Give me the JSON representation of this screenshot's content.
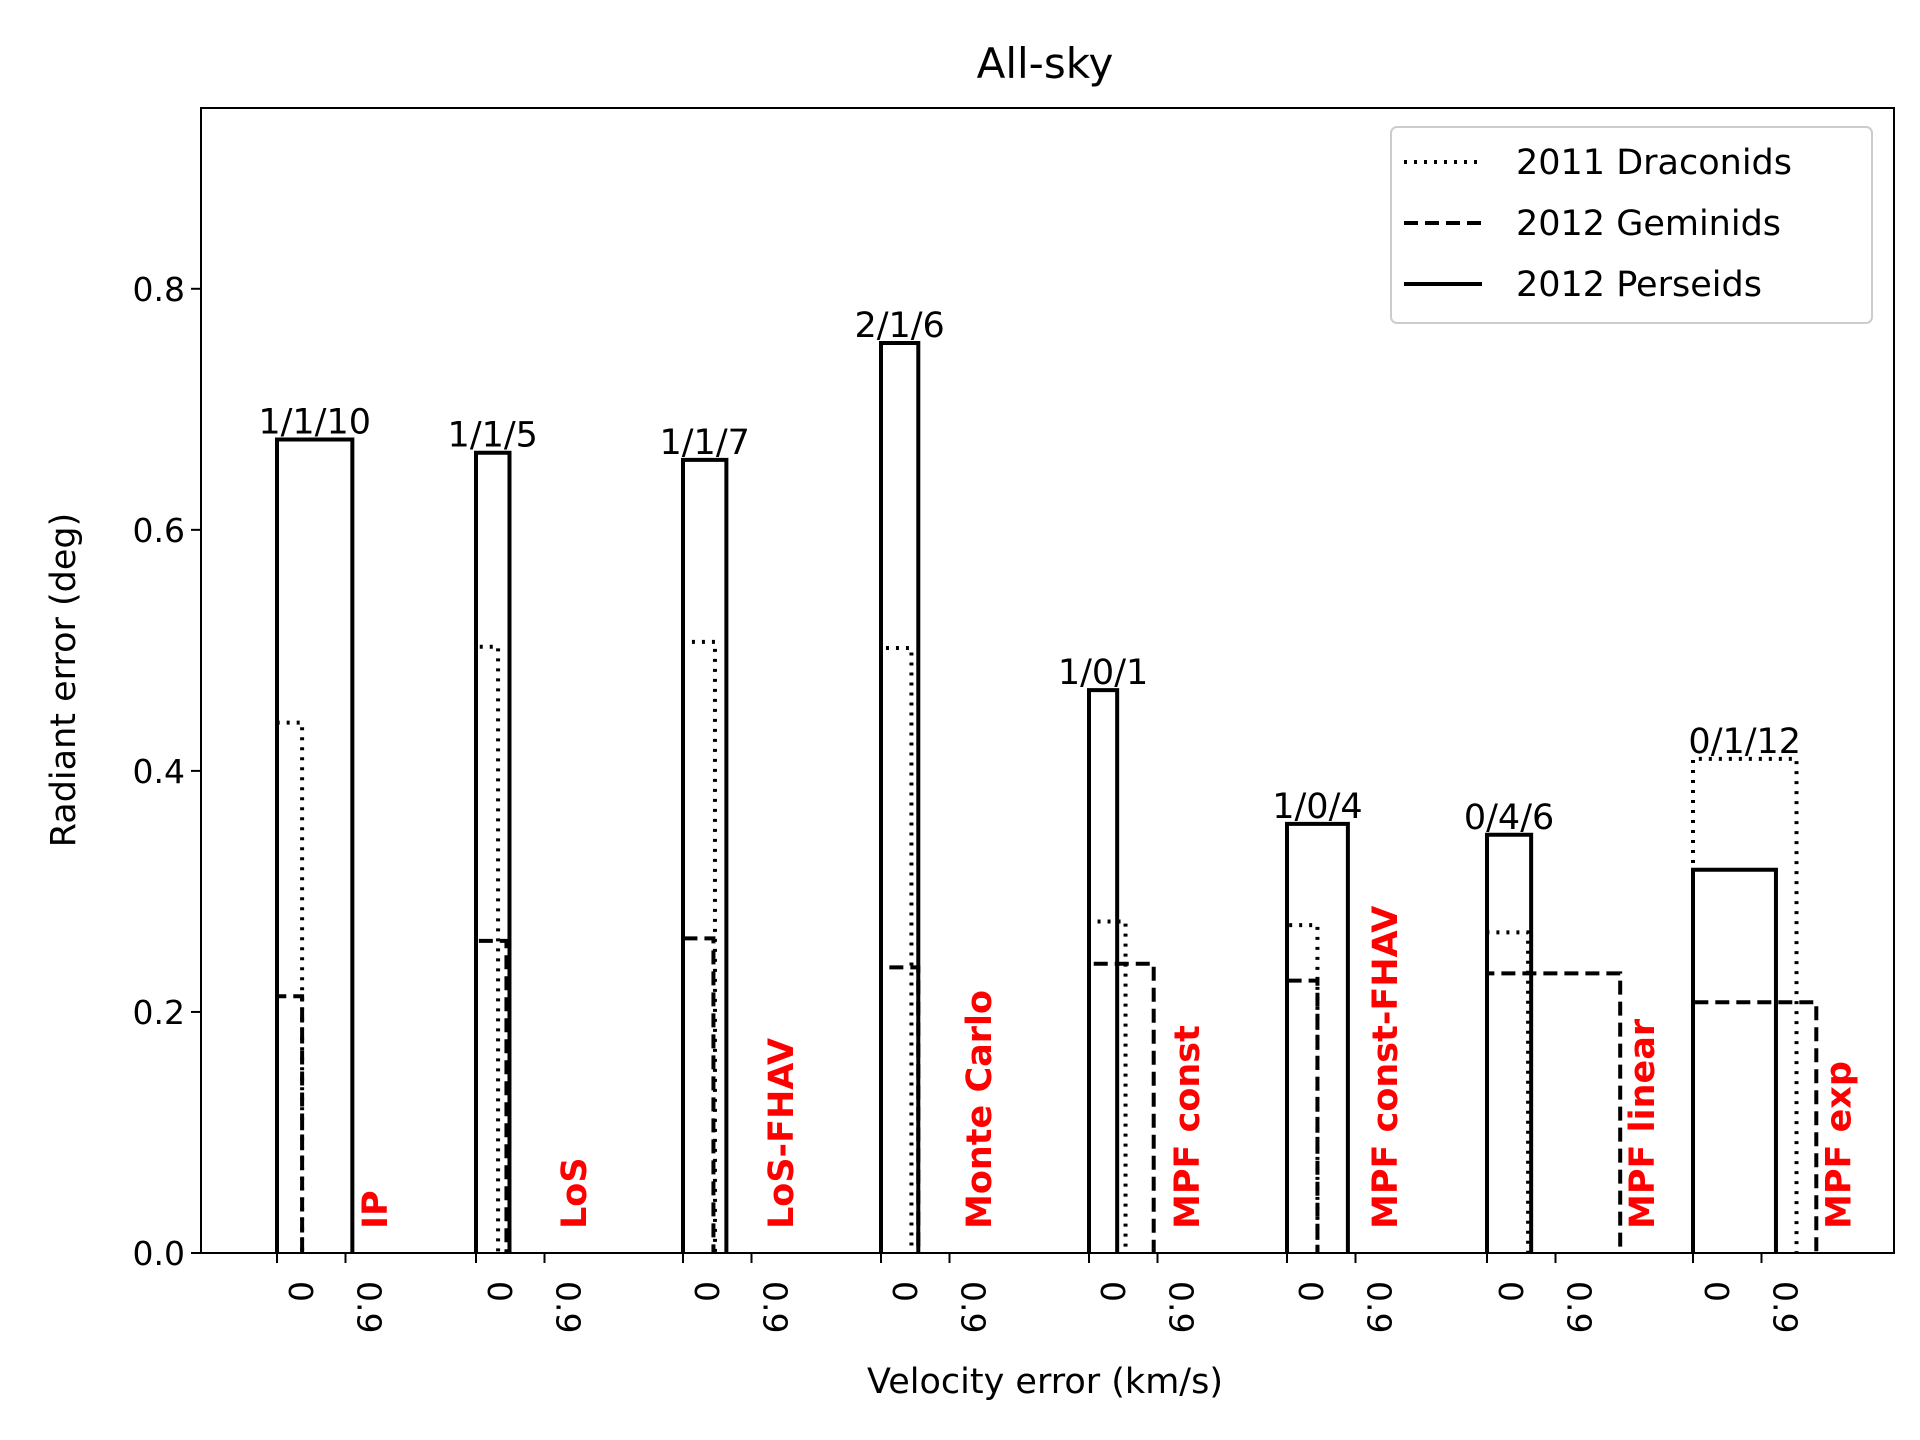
{
  "chart_data": {
    "type": "bar",
    "title": "All-sky",
    "xlabel": "Velocity error (km/s)",
    "ylabel": "Radiant error (deg)",
    "ylim": [
      0,
      0.95
    ],
    "yticks": [
      "0.0",
      "0.2",
      "0.4",
      "0.6",
      "0.8"
    ],
    "ytick_values": [
      0,
      0.2,
      0.4,
      0.6,
      0.8
    ],
    "xtick_labels": [
      "0",
      "0.9"
    ],
    "legend_position": "top-right",
    "label_color": "#ff0000",
    "series": [
      {
        "name": "2011 Draconids",
        "style": "dotted"
      },
      {
        "name": "2012 Geminids",
        "style": "dashed"
      },
      {
        "name": "2012 Perseids",
        "style": "solid"
      }
    ],
    "groups": [
      {
        "method": "IP",
        "counts": "1/1/10",
        "draconids": {
          "vel": 0.33,
          "rad": 0.44
        },
        "geminids": {
          "vel": 0.33,
          "rad": 0.213
        },
        "perseids": {
          "vel": 0.99,
          "rad": 0.675
        }
      },
      {
        "method": "LoS",
        "counts": "1/1/5",
        "draconids": {
          "vel": 0.29,
          "rad": 0.503
        },
        "geminids": {
          "vel": 0.4,
          "rad": 0.259
        },
        "perseids": {
          "vel": 0.44,
          "rad": 0.664
        }
      },
      {
        "method": "LoS-FHAV",
        "counts": "1/1/7",
        "draconids": {
          "vel": 0.42,
          "rad": 0.507
        },
        "geminids": {
          "vel": 0.4,
          "rad": 0.261
        },
        "perseids": {
          "vel": 0.57,
          "rad": 0.658
        }
      },
      {
        "method": "Monte Carlo",
        "counts": "2/1/6",
        "draconids": {
          "vel": 0.4,
          "rad": 0.502
        },
        "geminids": {
          "vel": 0.49,
          "rad": 0.237
        },
        "perseids": {
          "vel": 0.49,
          "rad": 0.755
        }
      },
      {
        "method": "MPF const",
        "counts": "1/0/1",
        "draconids": {
          "vel": 0.48,
          "rad": 0.275
        },
        "geminids": {
          "vel": 0.85,
          "rad": 0.24
        },
        "perseids": {
          "vel": 0.37,
          "rad": 0.467
        }
      },
      {
        "method": "MPF const-FHAV",
        "counts": "1/0/4",
        "draconids": {
          "vel": 0.4,
          "rad": 0.272
        },
        "geminids": {
          "vel": 0.4,
          "rad": 0.226
        },
        "perseids": {
          "vel": 0.8,
          "rad": 0.356
        }
      },
      {
        "method": "MPF linear",
        "counts": "0/4/6",
        "draconids": {
          "vel": 0.54,
          "rad": 0.266
        },
        "geminids": {
          "vel": 1.75,
          "rad": 0.232
        },
        "perseids": {
          "vel": 0.58,
          "rad": 0.347
        }
      },
      {
        "method": "MPF exp",
        "counts": "0/1/12",
        "draconids": {
          "vel": 1.36,
          "rad": 0.41
        },
        "geminids": {
          "vel": 1.62,
          "rad": 0.208
        },
        "perseids": {
          "vel": 1.09,
          "rad": 0.318
        }
      }
    ]
  }
}
